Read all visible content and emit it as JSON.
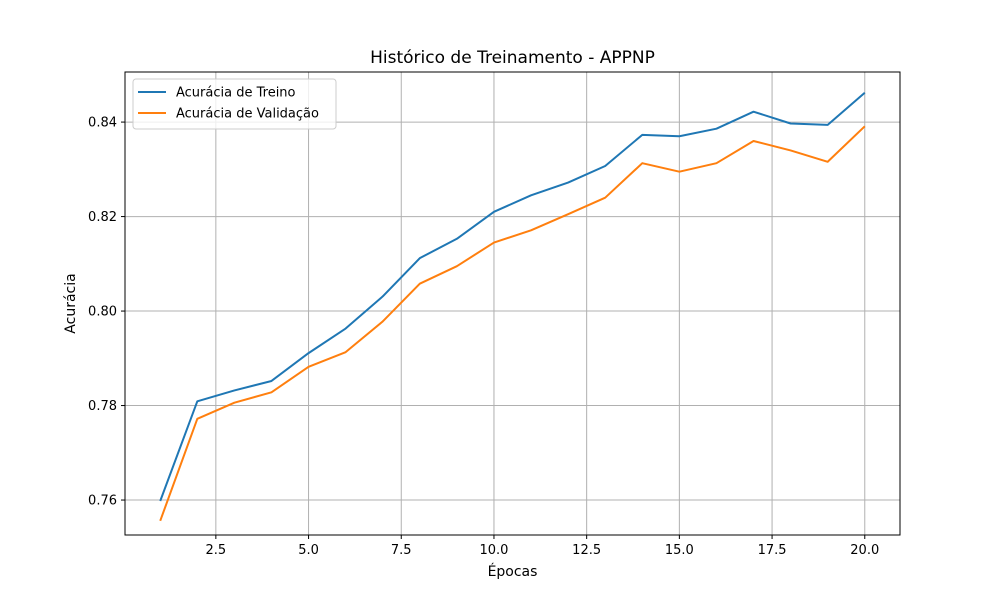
{
  "chart_data": {
    "type": "line",
    "title": "Histórico de Treinamento - APPNP",
    "xlabel": "Épocas",
    "ylabel": "Acurácia",
    "x": [
      1,
      2,
      3,
      4,
      5,
      6,
      7,
      8,
      9,
      10,
      11,
      12,
      13,
      14,
      15,
      16,
      17,
      18,
      19,
      20
    ],
    "xlim": [
      0.05,
      20.95
    ],
    "ylim": [
      0.7526,
      0.8506
    ],
    "xticks": [
      2.5,
      5.0,
      7.5,
      10.0,
      12.5,
      15.0,
      17.5,
      20.0
    ],
    "xtick_labels": [
      "2.5",
      "5.0",
      "7.5",
      "10.0",
      "12.5",
      "15.0",
      "17.5",
      "20.0"
    ],
    "yticks": [
      0.76,
      0.78,
      0.8,
      0.82,
      0.84
    ],
    "ytick_labels": [
      "0.76",
      "0.78",
      "0.80",
      "0.82",
      "0.84"
    ],
    "grid": true,
    "legend_position": "top-left",
    "series": [
      {
        "name": "Acurácia de Treino",
        "color": "#1f77b4",
        "values": [
          0.7598,
          0.7809,
          0.7832,
          0.7852,
          0.7911,
          0.7963,
          0.8031,
          0.8112,
          0.8153,
          0.821,
          0.8245,
          0.8272,
          0.8307,
          0.8373,
          0.837,
          0.8386,
          0.8422,
          0.8397,
          0.8394,
          0.8462
        ]
      },
      {
        "name": "Acurácia de Validação",
        "color": "#ff7f0e",
        "values": [
          0.7556,
          0.7772,
          0.7806,
          0.7828,
          0.7882,
          0.7913,
          0.7978,
          0.8058,
          0.8095,
          0.8145,
          0.8171,
          0.8205,
          0.824,
          0.8313,
          0.8295,
          0.8313,
          0.836,
          0.834,
          0.8316,
          0.8391
        ]
      }
    ]
  }
}
